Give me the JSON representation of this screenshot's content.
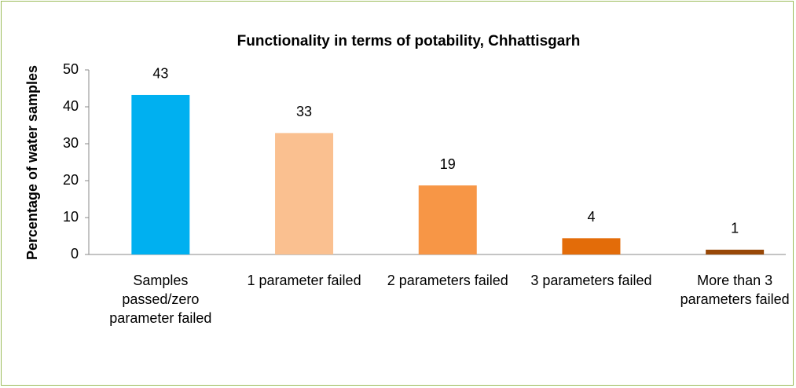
{
  "chart_data": {
    "type": "bar",
    "title": "Functionality in terms of potability, Chhattisgarh",
    "y_label": "Percentage of water samples",
    "categories": [
      "Samples passed/zero parameter failed",
      "1 parameter failed",
      "2 parameters failed",
      "3 parameters failed",
      "More than 3 parameters failed"
    ],
    "values": [
      43.2,
      32.9,
      18.7,
      4.4,
      1.3
    ],
    "value_labels": [
      "43",
      "33",
      "19",
      "4",
      "1"
    ],
    "colors": [
      "#00b0f0",
      "#fac090",
      "#f79646",
      "#e36c09",
      "#984807"
    ],
    "ylim": [
      0,
      50
    ],
    "yticks": [
      0,
      10,
      20,
      30,
      40,
      50
    ],
    "grid": false
  }
}
